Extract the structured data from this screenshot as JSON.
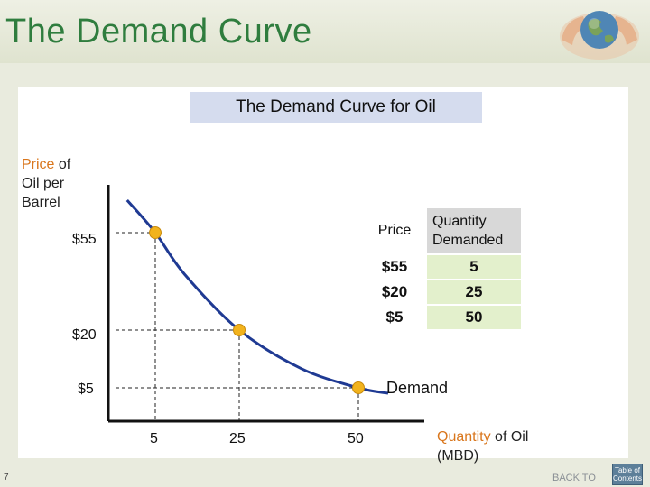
{
  "slide": {
    "title": "The Demand Curve",
    "page_number": "7",
    "back_to": "BACK TO",
    "toc_label": "Table of Contents"
  },
  "colors": {
    "title_green": "#2f7d3e",
    "curve": "#1f3a93",
    "point": "#f2b31d",
    "highlight_orange": "#d9761c",
    "table_qty_cell": "#e3f0cc",
    "chart_title_bg": "#d5dcee"
  },
  "icons": [
    "globe-in-hands-icon"
  ],
  "chart_data": {
    "type": "line",
    "title": "The Demand Curve for Oil",
    "ylabel_highlight": "Price",
    "ylabel_rest_line1": " of",
    "ylabel_line2": "Oil per",
    "ylabel_line3": "Barrel",
    "xlabel_highlight": "Quantity",
    "xlabel_rest": " of Oil",
    "xlabel_line2": "(MBD)",
    "x_ticks": [
      "5",
      "25",
      "50"
    ],
    "y_ticks": [
      "$55",
      "$20",
      "$5"
    ],
    "curve_label": "Demand",
    "points": [
      {
        "price": 55,
        "quantity": 5
      },
      {
        "price": 20,
        "quantity": 25
      },
      {
        "price": 5,
        "quantity": 50
      }
    ],
    "curve": [
      {
        "quantity": 2,
        "price": 68
      },
      {
        "quantity": 5,
        "price": 55
      },
      {
        "quantity": 12,
        "price": 40
      },
      {
        "quantity": 25,
        "price": 20
      },
      {
        "quantity": 38,
        "price": 10
      },
      {
        "quantity": 50,
        "price": 5
      },
      {
        "quantity": 54,
        "price": 4
      }
    ],
    "table": {
      "headers": [
        "Price",
        "Quantity Demanded"
      ],
      "rows": [
        [
          "$55",
          "5"
        ],
        [
          "$20",
          "25"
        ],
        [
          "$5",
          "50"
        ]
      ]
    }
  }
}
